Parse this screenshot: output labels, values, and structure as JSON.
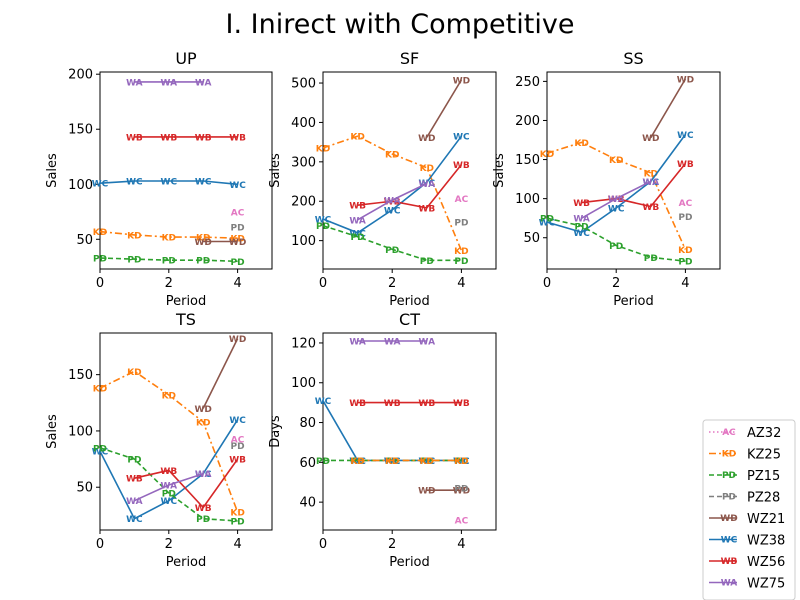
{
  "figure_title": "I. Inirect with Competitive",
  "colors": {
    "AZ32": "#e377c2",
    "KZ25": "#ff7f0e",
    "PZ15": "#2ca02c",
    "PZ28": "#7f7f7f",
    "WZ21": "#8c564b",
    "WZ38": "#1f77b4",
    "WZ56": "#d62728",
    "WZ75": "#9467bd"
  },
  "legend": [
    {
      "name": "AZ32",
      "marker": "AC",
      "dash": "dotted"
    },
    {
      "name": "KZ25",
      "marker": "KD",
      "dash": "dashdot"
    },
    {
      "name": "PZ15",
      "marker": "PD",
      "dash": "dashed"
    },
    {
      "name": "PZ28",
      "marker": "PD",
      "dash": "dashed"
    },
    {
      "name": "WZ21",
      "marker": "WD",
      "dash": "solid"
    },
    {
      "name": "WZ38",
      "marker": "WC",
      "dash": "solid"
    },
    {
      "name": "WZ56",
      "marker": "WB",
      "dash": "solid"
    },
    {
      "name": "WZ75",
      "marker": "WA",
      "dash": "solid"
    }
  ],
  "chart_data": [
    {
      "type": "line",
      "title": "UP",
      "xlabel": "Period",
      "ylabel": "Sales",
      "xlim": [
        0,
        5
      ],
      "ylim": [
        23,
        202
      ],
      "xticks": [
        0,
        2,
        4
      ],
      "yticks": [
        50,
        100,
        150,
        200
      ],
      "series": [
        {
          "key": "WZ75",
          "marker": "WA",
          "dash": "solid",
          "x": [
            1,
            2,
            3
          ],
          "y": [
            193,
            193,
            193
          ]
        },
        {
          "key": "WZ56",
          "marker": "WB",
          "dash": "solid",
          "x": [
            1,
            2,
            3,
            4
          ],
          "y": [
            143,
            143,
            143,
            143
          ]
        },
        {
          "key": "WZ38",
          "marker": "WC",
          "dash": "solid",
          "x": [
            0,
            1,
            2,
            3,
            4
          ],
          "y": [
            101,
            103,
            103,
            103,
            100
          ]
        },
        {
          "key": "KZ25",
          "marker": "KD",
          "dash": "dashdot",
          "x": [
            0,
            1,
            2,
            3,
            4
          ],
          "y": [
            57,
            54,
            52,
            52,
            51
          ]
        },
        {
          "key": "PZ15",
          "marker": "PD",
          "dash": "dashed",
          "x": [
            0,
            1,
            2,
            3,
            4
          ],
          "y": [
            33,
            32,
            31,
            31,
            30
          ]
        },
        {
          "key": "WZ21",
          "marker": "WD",
          "dash": "solid",
          "x": [
            3,
            4
          ],
          "y": [
            48,
            48
          ]
        },
        {
          "key": "PZ28",
          "marker": "PD",
          "dash": "dashed",
          "x": [
            4
          ],
          "y": [
            61
          ]
        },
        {
          "key": "AZ32",
          "marker": "AC",
          "dash": "dotted",
          "x": [
            4
          ],
          "y": [
            75
          ]
        }
      ]
    },
    {
      "type": "line",
      "title": "SF",
      "xlabel": "Period",
      "ylabel": "Sales",
      "xlim": [
        0,
        5
      ],
      "ylim": [
        28,
        528
      ],
      "xticks": [
        0,
        2,
        4
      ],
      "yticks": [
        100,
        200,
        300,
        400,
        500
      ],
      "series": [
        {
          "key": "KZ25",
          "marker": "KD",
          "dash": "dashdot",
          "x": [
            0,
            1,
            2,
            3,
            4
          ],
          "y": [
            335,
            365,
            320,
            285,
            75
          ]
        },
        {
          "key": "WZ38",
          "marker": "WC",
          "dash": "solid",
          "x": [
            0,
            1,
            2,
            3,
            4
          ],
          "y": [
            155,
            120,
            178,
            248,
            365
          ]
        },
        {
          "key": "PZ15",
          "marker": "PD",
          "dash": "dashed",
          "x": [
            0,
            1,
            2,
            3,
            4
          ],
          "y": [
            138,
            110,
            78,
            50,
            50
          ]
        },
        {
          "key": "WZ56",
          "marker": "WB",
          "dash": "solid",
          "x": [
            1,
            2,
            3,
            4
          ],
          "y": [
            190,
            200,
            183,
            293
          ]
        },
        {
          "key": "WZ75",
          "marker": "WA",
          "dash": "solid",
          "x": [
            1,
            2,
            3
          ],
          "y": [
            153,
            203,
            245
          ]
        },
        {
          "key": "WZ21",
          "marker": "WD",
          "dash": "solid",
          "x": [
            3,
            4
          ],
          "y": [
            362,
            508
          ]
        },
        {
          "key": "PZ28",
          "marker": "PD",
          "dash": "dashed",
          "x": [
            4
          ],
          "y": [
            147
          ]
        },
        {
          "key": "AZ32",
          "marker": "AC",
          "dash": "dotted",
          "x": [
            4
          ],
          "y": [
            207
          ]
        }
      ]
    },
    {
      "type": "line",
      "title": "SS",
      "xlabel": "Period",
      "ylabel": "Sales",
      "xlim": [
        0,
        5
      ],
      "ylim": [
        10,
        262
      ],
      "xticks": [
        0,
        2,
        4
      ],
      "yticks": [
        50,
        100,
        150,
        200,
        250
      ],
      "series": [
        {
          "key": "KZ25",
          "marker": "KD",
          "dash": "dashdot",
          "x": [
            0,
            1,
            2,
            3,
            4
          ],
          "y": [
            158,
            172,
            150,
            133,
            35
          ]
        },
        {
          "key": "WZ38",
          "marker": "WC",
          "dash": "solid",
          "x": [
            0,
            1,
            2,
            3,
            4
          ],
          "y": [
            70,
            57,
            88,
            122,
            182
          ]
        },
        {
          "key": "PZ15",
          "marker": "PD",
          "dash": "dashed",
          "x": [
            0,
            1,
            2,
            3,
            4
          ],
          "y": [
            75,
            65,
            40,
            25,
            20
          ]
        },
        {
          "key": "WZ56",
          "marker": "WB",
          "dash": "solid",
          "x": [
            1,
            2,
            3,
            4
          ],
          "y": [
            95,
            100,
            90,
            145
          ]
        },
        {
          "key": "WZ75",
          "marker": "WA",
          "dash": "solid",
          "x": [
            1,
            2,
            3
          ],
          "y": [
            75,
            100,
            122
          ]
        },
        {
          "key": "WZ21",
          "marker": "WD",
          "dash": "solid",
          "x": [
            3,
            4
          ],
          "y": [
            178,
            253
          ]
        },
        {
          "key": "PZ28",
          "marker": "PD",
          "dash": "dashed",
          "x": [
            4
          ],
          "y": [
            77
          ]
        },
        {
          "key": "AZ32",
          "marker": "AC",
          "dash": "dotted",
          "x": [
            4
          ],
          "y": [
            95
          ]
        }
      ]
    },
    {
      "type": "line",
      "title": "TS",
      "xlabel": "Period",
      "ylabel": "Sales",
      "xlim": [
        0,
        5
      ],
      "ylim": [
        12,
        187
      ],
      "xticks": [
        0,
        2,
        4
      ],
      "yticks": [
        50,
        100,
        150
      ],
      "series": [
        {
          "key": "KZ25",
          "marker": "KD",
          "dash": "dashdot",
          "x": [
            0,
            1,
            2,
            3,
            4
          ],
          "y": [
            138,
            153,
            132,
            108,
            28
          ]
        },
        {
          "key": "WZ38",
          "marker": "WC",
          "dash": "solid",
          "x": [
            0,
            1,
            2,
            3,
            4
          ],
          "y": [
            82,
            22,
            38,
            62,
            110
          ]
        },
        {
          "key": "PZ15",
          "marker": "PD",
          "dash": "dashed",
          "x": [
            0,
            1,
            2,
            3,
            4
          ],
          "y": [
            85,
            75,
            45,
            22,
            20
          ]
        },
        {
          "key": "WZ56",
          "marker": "WB",
          "dash": "solid",
          "x": [
            1,
            2,
            3,
            4
          ],
          "y": [
            58,
            65,
            32,
            75
          ]
        },
        {
          "key": "WZ75",
          "marker": "WA",
          "dash": "solid",
          "x": [
            1,
            2,
            3
          ],
          "y": [
            38,
            52,
            62
          ]
        },
        {
          "key": "WZ21",
          "marker": "WD",
          "dash": "solid",
          "x": [
            3,
            4
          ],
          "y": [
            120,
            182
          ]
        },
        {
          "key": "PZ28",
          "marker": "PD",
          "dash": "dashed",
          "x": [
            4
          ],
          "y": [
            87
          ]
        },
        {
          "key": "AZ32",
          "marker": "AC",
          "dash": "dotted",
          "x": [
            4
          ],
          "y": [
            93
          ]
        }
      ]
    },
    {
      "type": "line",
      "title": "CT",
      "xlabel": "Period",
      "ylabel": "Days",
      "xlim": [
        0,
        5
      ],
      "ylim": [
        26,
        125
      ],
      "xticks": [
        0,
        2,
        4
      ],
      "yticks": [
        40,
        60,
        80,
        100,
        120
      ],
      "series": [
        {
          "key": "WZ75",
          "marker": "WA",
          "dash": "solid",
          "x": [
            1,
            2,
            3
          ],
          "y": [
            121,
            121,
            121
          ]
        },
        {
          "key": "WZ38",
          "marker": "WC",
          "dash": "solid",
          "x": [
            0,
            1,
            2,
            3,
            4
          ],
          "y": [
            91,
            61,
            61,
            61,
            61
          ]
        },
        {
          "key": "WZ56",
          "marker": "WB",
          "dash": "solid",
          "x": [
            1,
            2,
            3,
            4
          ],
          "y": [
            90,
            90,
            90,
            90
          ]
        },
        {
          "key": "PZ15",
          "marker": "PD",
          "dash": "dashed",
          "x": [
            0,
            1,
            2,
            3,
            4
          ],
          "y": [
            61,
            61,
            61,
            61,
            61
          ]
        },
        {
          "key": "KZ25",
          "marker": "KD",
          "dash": "dashdot",
          "x": [
            1,
            2,
            3,
            4
          ],
          "y": [
            61,
            61,
            61,
            61
          ]
        },
        {
          "key": "WZ21",
          "marker": "WD",
          "dash": "solid",
          "x": [
            3,
            4
          ],
          "y": [
            46,
            46
          ]
        },
        {
          "key": "PZ28",
          "marker": "PD",
          "dash": "dashed",
          "x": [
            4
          ],
          "y": [
            47
          ]
        },
        {
          "key": "AZ32",
          "marker": "AC",
          "dash": "dotted",
          "x": [
            4
          ],
          "y": [
            31
          ]
        }
      ]
    }
  ]
}
